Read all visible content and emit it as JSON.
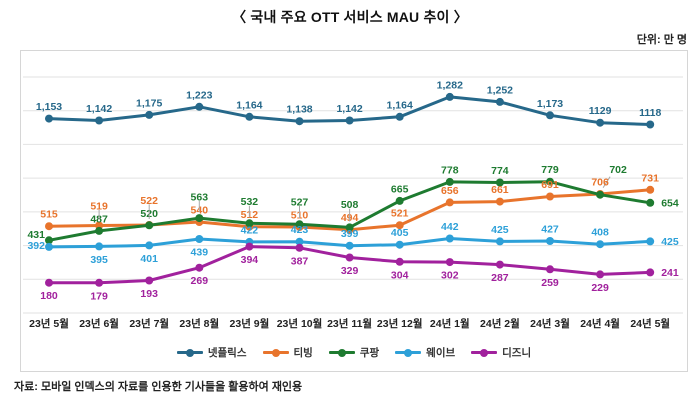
{
  "title": "〈 국내 주요 OTT 서비스 MAU 추이 〉",
  "unit_label": "단위: 만 명",
  "source": "자료: 모바일 인덱스의 자료를 인용한 기사들을 활용하여 재인용",
  "chart_data": {
    "type": "line",
    "title": "국내 주요 OTT 서비스 MAU 추이",
    "unit": "만 명",
    "categories": [
      "23년 5월",
      "23년 6월",
      "23년 7월",
      "23년 8월",
      "23년 9월",
      "23년 10월",
      "23년 11월",
      "23년 12월",
      "24년 1월",
      "24년 2월",
      "24년 3월",
      "24년 4월",
      "24년 5월"
    ],
    "ylim": [
      0,
      1400
    ],
    "grid_step": 200,
    "grid": "horizontal-only",
    "legend_position": "bottom",
    "series": [
      {
        "id": "netflix",
        "name": "넷플릭스",
        "color": "#26688a",
        "values": [
          1153,
          1142,
          1175,
          1223,
          1164,
          1138,
          1142,
          1164,
          1282,
          1252,
          1173,
          1129,
          1118
        ],
        "labels": [
          "1,153",
          "1,142",
          "1,175",
          "1,223",
          "1,164",
          "1,138",
          "1,142",
          "1,164",
          "1,282",
          "1,252",
          "1,173",
          "1129",
          "1118"
        ],
        "label_sides": [
          "a",
          "a",
          "a",
          "a",
          "a",
          "a",
          "a",
          "a",
          "a",
          "a",
          "a",
          "a",
          "a"
        ]
      },
      {
        "id": "tving",
        "name": "티빙",
        "color": "#e8742c",
        "values": [
          515,
          519,
          522,
          540,
          512,
          510,
          494,
          521,
          656,
          661,
          691,
          706,
          731
        ],
        "labels": [
          "515",
          "519",
          "522",
          "540",
          "512",
          "510",
          "494",
          "521",
          "656",
          "661",
          "691",
          "706",
          "731"
        ],
        "label_sides": [
          "a",
          "a",
          "a",
          "a",
          "a",
          "a",
          "a",
          "a",
          "a",
          "a",
          "a",
          "a",
          "a"
        ]
      },
      {
        "id": "coupang",
        "name": "쿠팡",
        "color": "#1e7b30",
        "values": [
          431,
          487,
          520,
          563,
          532,
          527,
          508,
          665,
          778,
          774,
          779,
          702,
          654
        ],
        "labels": [
          "431",
          "487",
          "520",
          "563",
          "532",
          "527",
          "508",
          "665",
          "778",
          "774",
          "779",
          "702",
          "654"
        ],
        "label_sides": [
          "l",
          "a",
          "a",
          "a",
          "a",
          "a",
          "a",
          "a",
          "a",
          "a",
          "a",
          "ar",
          "r"
        ]
      },
      {
        "id": "wavve",
        "name": "웨이브",
        "color": "#2da0d8",
        "values": [
          392,
          395,
          401,
          439,
          422,
          423,
          399,
          405,
          442,
          425,
          427,
          408,
          425
        ],
        "labels": [
          "392",
          "395",
          "401",
          "439",
          "422",
          "423",
          "399",
          "405",
          "442",
          "425",
          "427",
          "408",
          "425"
        ],
        "label_sides": [
          "l",
          "b",
          "b",
          "b",
          "a",
          "a",
          "a",
          "a",
          "a",
          "a",
          "a",
          "a",
          "r"
        ]
      },
      {
        "id": "disney",
        "name": "디즈니",
        "color": "#a1219d",
        "values": [
          180,
          179,
          193,
          269,
          394,
          387,
          329,
          304,
          302,
          287,
          259,
          229,
          241
        ],
        "labels": [
          "180",
          "179",
          "193",
          "269",
          "394",
          "387",
          "329",
          "304",
          "302",
          "287",
          "259",
          "229",
          "241"
        ],
        "label_sides": [
          "b",
          "b",
          "b",
          "b",
          "b",
          "b",
          "b",
          "b",
          "b",
          "b",
          "b",
          "b",
          "r"
        ]
      }
    ],
    "colors": {
      "grid": "#e2e2e2",
      "card_border": "#d6d6d6",
      "leader_line": "#a8a8a8"
    }
  }
}
